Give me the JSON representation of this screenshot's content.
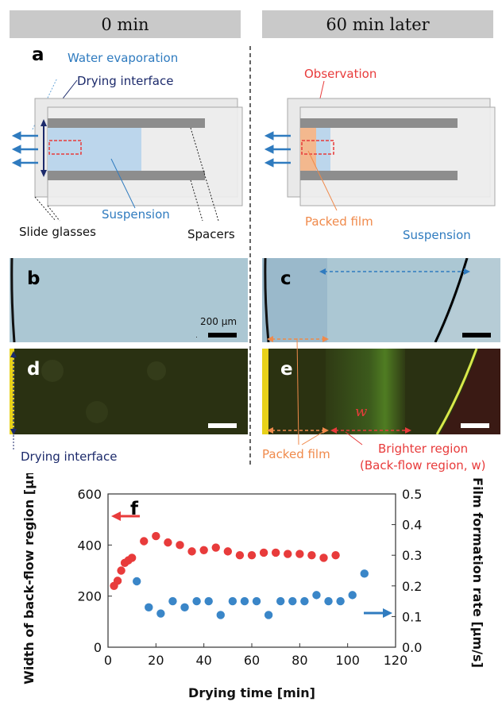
{
  "headers": {
    "left": "0 min",
    "right": "60 min later"
  },
  "panel_letters": {
    "a": "a",
    "b": "b",
    "c": "c",
    "d": "d",
    "e": "e",
    "f": "f"
  },
  "schematic": {
    "water_evaporation": "Water evaporation",
    "drying_interface": "Drying interface",
    "suspension": "Suspension",
    "slide_glasses": "Slide glasses",
    "spacers": "Spacers",
    "observation": "Observation",
    "packed_film": "Packed film"
  },
  "micro": {
    "suspension": "Suspension",
    "scale_bar": "200 μm",
    "w_label": "w",
    "drying_interface": "Drying interface",
    "packed_film": "Packed film",
    "brighter_region": "Brighter region",
    "backflow_region": "(Back-flow region, w)"
  },
  "colors": {
    "blue": "#2f7bbf",
    "navy": "#1c2a6b",
    "red": "#e83b3b",
    "orange": "#f08a4b",
    "dot_blue": "#3a86c8",
    "suspension_fill": "#bcd6ec"
  },
  "chart_data": {
    "type": "scatter",
    "xlabel": "Drying time [min]",
    "ylabel_left": "Width of back-flow region [μm]",
    "ylabel_right": "Film formation rate [μm/s]",
    "xlim": [
      0,
      120
    ],
    "ylim_left": [
      0,
      600
    ],
    "ylim_right": [
      0,
      0.5
    ],
    "xticks": [
      "0",
      "20",
      "40",
      "60",
      "80",
      "100",
      "120"
    ],
    "yticks_left": [
      "0",
      "200",
      "400",
      "600"
    ],
    "yticks_right": [
      "0.0",
      "0.1",
      "0.2",
      "0.3",
      "0.4",
      "0.5"
    ],
    "series": [
      {
        "axis": "left",
        "color": "#e83b3b",
        "x": [
          2.5,
          4,
          5.5,
          7,
          8.5,
          10,
          15,
          20,
          25,
          30,
          35,
          40,
          45,
          50,
          55,
          60,
          65,
          70,
          75,
          80,
          85,
          90,
          95
        ],
        "y": [
          240,
          260,
          300,
          330,
          340,
          350,
          415,
          435,
          410,
          400,
          375,
          380,
          390,
          375,
          360,
          360,
          370,
          370,
          365,
          365,
          360,
          350,
          360
        ]
      },
      {
        "axis": "right",
        "color": "#3a86c8",
        "x": [
          12,
          17,
          22,
          27,
          32,
          37,
          42,
          47,
          52,
          57,
          62,
          67,
          72,
          77,
          82,
          87,
          92,
          97,
          102,
          107
        ],
        "y": [
          0.215,
          0.13,
          0.11,
          0.15,
          0.13,
          0.15,
          0.15,
          0.105,
          0.15,
          0.15,
          0.15,
          0.105,
          0.15,
          0.15,
          0.15,
          0.17,
          0.15,
          0.15,
          0.17,
          0.24
        ]
      }
    ]
  }
}
